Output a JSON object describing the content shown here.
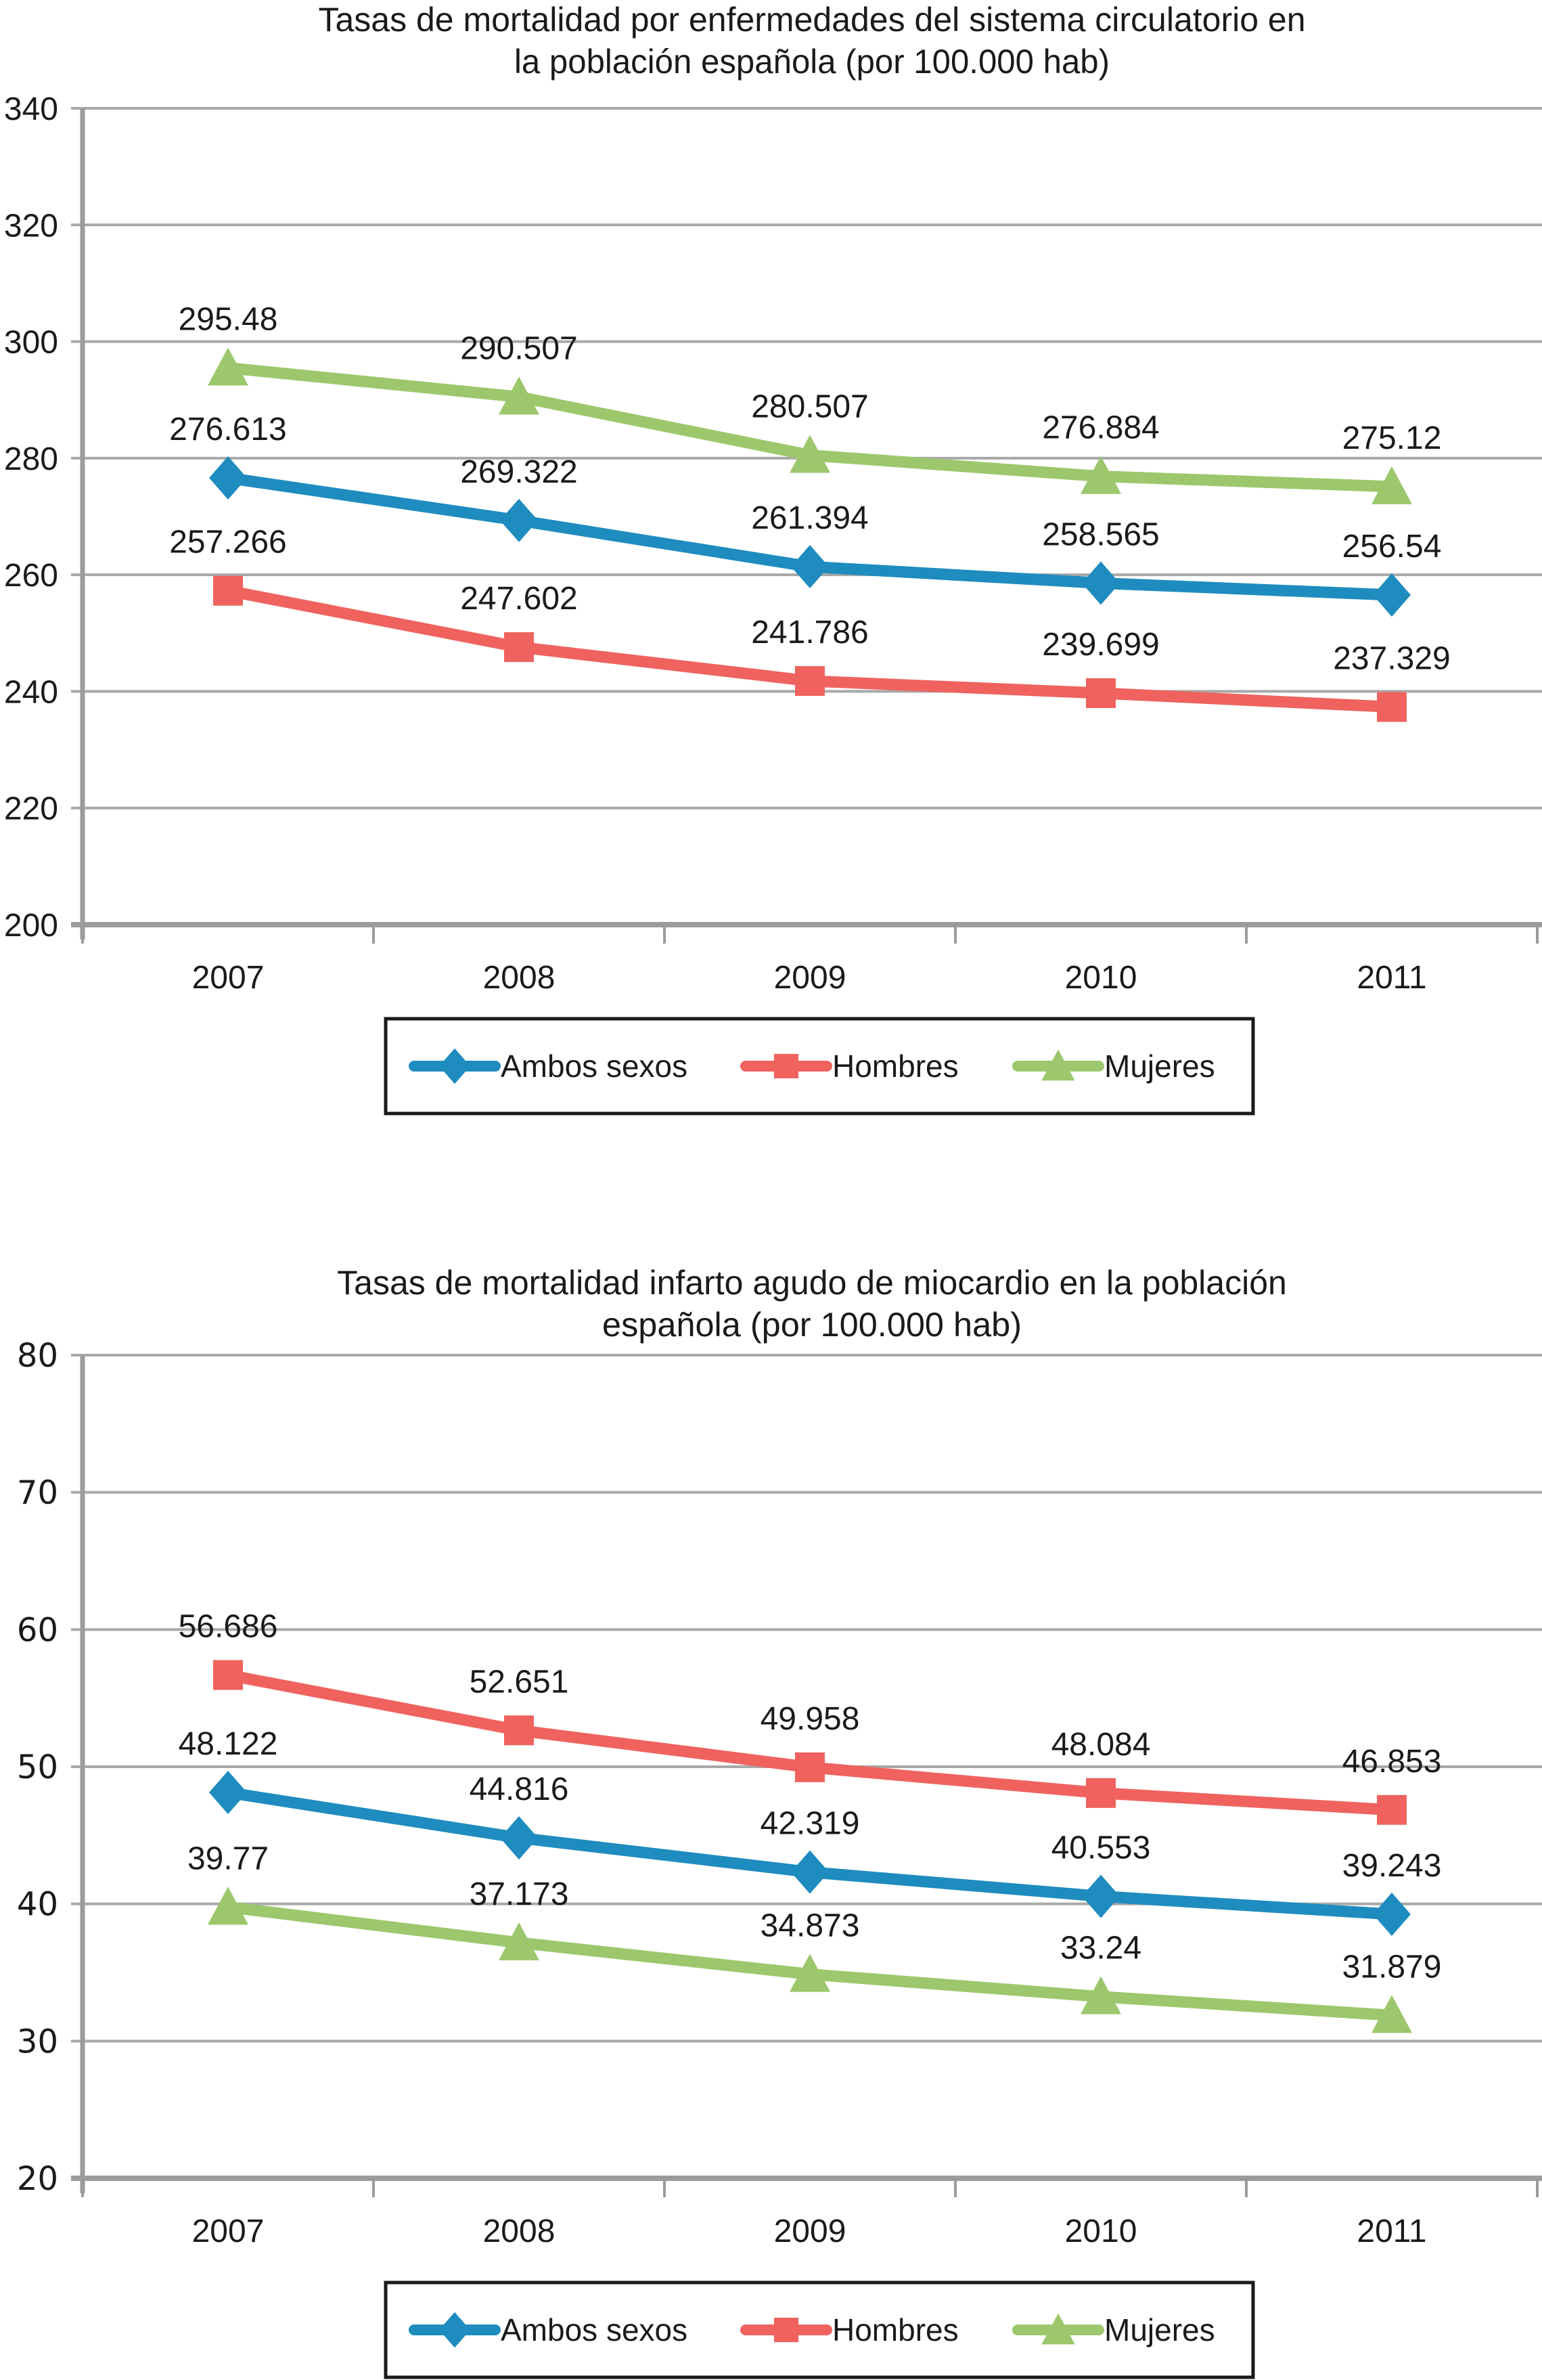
{
  "figure_background": "#ffffff",
  "grid_color": "#a8a8a8",
  "axis_color": "#9b9b9b",
  "text_color": "#1a1a1a",
  "legend_border_color": "#1a1a1a",
  "chart_data": [
    {
      "type": "line",
      "title_line1": "Tasas de mortalidad por enfermedades del sistema circulatorio en",
      "title_line2": "la población española (por 100.000 hab)",
      "categories": [
        "2007",
        "2008",
        "2009",
        "2010",
        "2011"
      ],
      "ylim": [
        200,
        340
      ],
      "ytick_step": 20,
      "ytick_labels": [
        "200",
        "220",
        "240",
        "260",
        "280",
        "300",
        "320",
        "340"
      ],
      "grid": true,
      "legend_position": "bottom",
      "series": [
        {
          "name": "Ambos sexos",
          "marker": "diamond",
          "color": "#1e8cbe",
          "values": [
            276.613,
            269.322,
            261.394,
            258.565,
            256.54
          ]
        },
        {
          "name": "Hombres",
          "marker": "square",
          "color": "#f0625e",
          "values": [
            257.266,
            247.602,
            241.786,
            239.699,
            237.329
          ]
        },
        {
          "name": "Mujeres",
          "marker": "triangle",
          "color": "#9cc76c",
          "values": [
            295.48,
            290.507,
            280.507,
            276.884,
            275.12
          ]
        }
      ]
    },
    {
      "type": "line",
      "title_line1": "Tasas de mortalidad infarto agudo de miocardio en la población",
      "title_line2": "española (por 100.000 hab)",
      "categories": [
        "2007",
        "2008",
        "2009",
        "2010",
        "2011"
      ],
      "ylim": [
        20,
        80
      ],
      "ytick_step": 10,
      "ytick_labels": [
        "20",
        "30",
        "40",
        "50",
        "60",
        "70",
        "80"
      ],
      "grid": true,
      "legend_position": "bottom",
      "series": [
        {
          "name": "Ambos sexos",
          "marker": "diamond",
          "color": "#1e8cbe",
          "values": [
            48.122,
            44.816,
            42.319,
            40.553,
            39.243
          ]
        },
        {
          "name": "Hombres",
          "marker": "square",
          "color": "#f0625e",
          "values": [
            56.686,
            52.651,
            49.958,
            48.084,
            46.853
          ]
        },
        {
          "name": "Mujeres",
          "marker": "triangle",
          "color": "#9cc76c",
          "values": [
            39.77,
            37.173,
            34.873,
            33.24,
            31.879
          ]
        }
      ]
    }
  ]
}
